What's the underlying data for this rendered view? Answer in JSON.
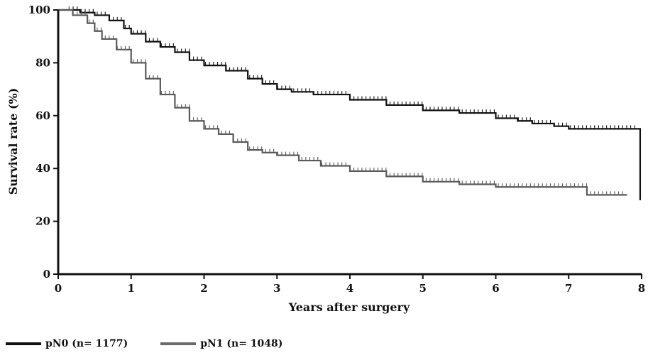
{
  "chart_data": {
    "type": "line",
    "title": "",
    "xlabel": "Years after surgery",
    "ylabel": "Survival rate (%)",
    "xlim": [
      0,
      8
    ],
    "ylim": [
      0,
      100
    ],
    "x_ticks": [
      "0",
      "1",
      "2",
      "3",
      "4",
      "5",
      "6",
      "7",
      "8"
    ],
    "y_ticks": [
      "0",
      "20",
      "40",
      "60",
      "80",
      "100"
    ],
    "grid": false,
    "legend_position": "bottom-left",
    "series": [
      {
        "name": "pN0 (n= 1177)",
        "color": "#111111",
        "points": [
          [
            0,
            100
          ],
          [
            0.3,
            99
          ],
          [
            0.5,
            98
          ],
          [
            0.7,
            96
          ],
          [
            0.9,
            93
          ],
          [
            1.0,
            91
          ],
          [
            1.2,
            88
          ],
          [
            1.4,
            86
          ],
          [
            1.6,
            84
          ],
          [
            1.8,
            81
          ],
          [
            2.0,
            79
          ],
          [
            2.3,
            77
          ],
          [
            2.6,
            74
          ],
          [
            2.8,
            72
          ],
          [
            3.0,
            70
          ],
          [
            3.2,
            69
          ],
          [
            3.5,
            68
          ],
          [
            4.0,
            66
          ],
          [
            4.5,
            64
          ],
          [
            5.0,
            62
          ],
          [
            5.5,
            61
          ],
          [
            6.0,
            59
          ],
          [
            6.3,
            58
          ],
          [
            6.5,
            57
          ],
          [
            6.8,
            56
          ],
          [
            7.0,
            55
          ],
          [
            7.5,
            55
          ],
          [
            7.98,
            55
          ],
          [
            7.98,
            28
          ]
        ]
      },
      {
        "name": "pN1 (n= 1048)",
        "color": "#5a5a5a",
        "points": [
          [
            0,
            100
          ],
          [
            0.2,
            98
          ],
          [
            0.4,
            95
          ],
          [
            0.5,
            92
          ],
          [
            0.6,
            89
          ],
          [
            0.8,
            85
          ],
          [
            1.0,
            80
          ],
          [
            1.2,
            74
          ],
          [
            1.4,
            68
          ],
          [
            1.6,
            63
          ],
          [
            1.8,
            58
          ],
          [
            2.0,
            55
          ],
          [
            2.2,
            53
          ],
          [
            2.4,
            50
          ],
          [
            2.6,
            47
          ],
          [
            2.8,
            46
          ],
          [
            3.0,
            45
          ],
          [
            3.3,
            43
          ],
          [
            3.6,
            41
          ],
          [
            4.0,
            39
          ],
          [
            4.5,
            37
          ],
          [
            5.0,
            35
          ],
          [
            5.5,
            34
          ],
          [
            6.0,
            33
          ],
          [
            6.5,
            33
          ],
          [
            7.0,
            33
          ],
          [
            7.25,
            33
          ],
          [
            7.25,
            30
          ],
          [
            7.5,
            30
          ],
          [
            7.8,
            30
          ]
        ]
      }
    ]
  }
}
